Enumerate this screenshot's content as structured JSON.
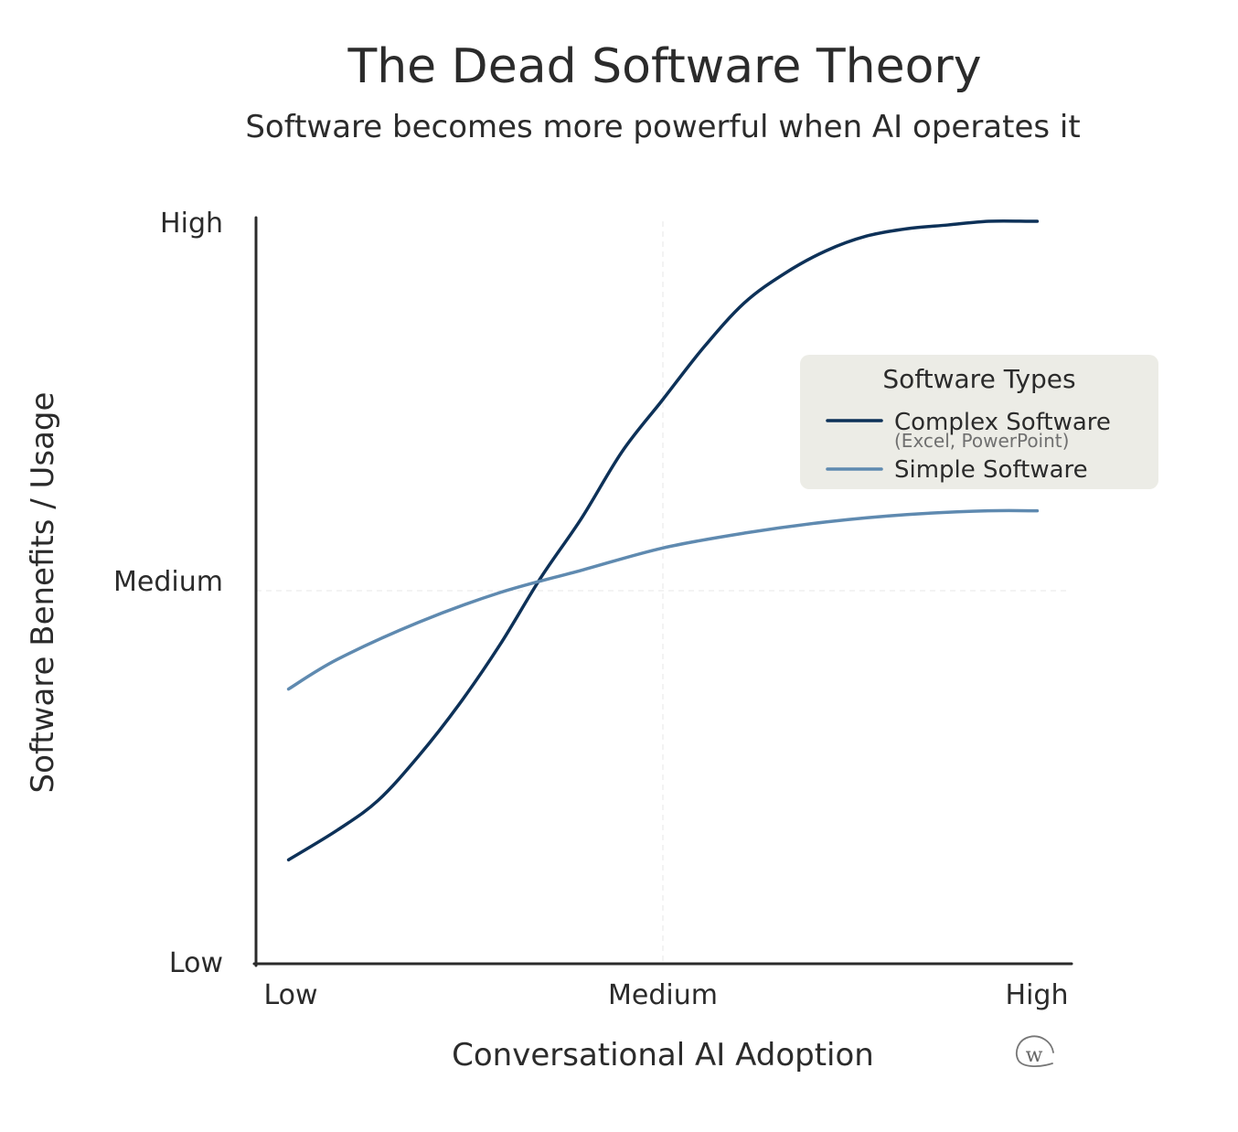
{
  "chart_data": {
    "type": "line",
    "title": "The Dead Software Theory",
    "subtitle": "Software becomes more powerful when AI operates it",
    "xlabel": "Conversational AI Adoption",
    "ylabel": "Software Benefits / Usage",
    "x_ticks": [
      "Low",
      "Medium",
      "High"
    ],
    "y_ticks": [
      "Low",
      "Medium",
      "High"
    ],
    "xlim": [
      0,
      1
    ],
    "ylim": [
      0,
      1
    ],
    "grid": "dashed at Medium",
    "legend": {
      "title": "Software Types",
      "placement": "center-right"
    },
    "series": [
      {
        "name": "Complex Software",
        "note": "(Excel, PowerPoint)",
        "color": "#0d3158",
        "x": [
          0.04,
          0.1,
          0.15,
          0.2,
          0.25,
          0.3,
          0.35,
          0.4,
          0.45,
          0.5,
          0.55,
          0.6,
          0.65,
          0.7,
          0.75,
          0.8,
          0.85,
          0.9,
          0.95,
          0.96
        ],
        "y": [
          0.14,
          0.18,
          0.22,
          0.28,
          0.35,
          0.43,
          0.52,
          0.6,
          0.69,
          0.76,
          0.83,
          0.89,
          0.93,
          0.96,
          0.98,
          0.99,
          0.995,
          1.0,
          1.0,
          1.0
        ]
      },
      {
        "name": "Simple Software",
        "color": "#5f8ab0",
        "x": [
          0.04,
          0.1,
          0.2,
          0.3,
          0.4,
          0.5,
          0.6,
          0.7,
          0.8,
          0.9,
          0.96
        ],
        "y": [
          0.37,
          0.41,
          0.46,
          0.5,
          0.53,
          0.56,
          0.58,
          0.595,
          0.605,
          0.61,
          0.61
        ]
      }
    ]
  },
  "signature": "@W"
}
